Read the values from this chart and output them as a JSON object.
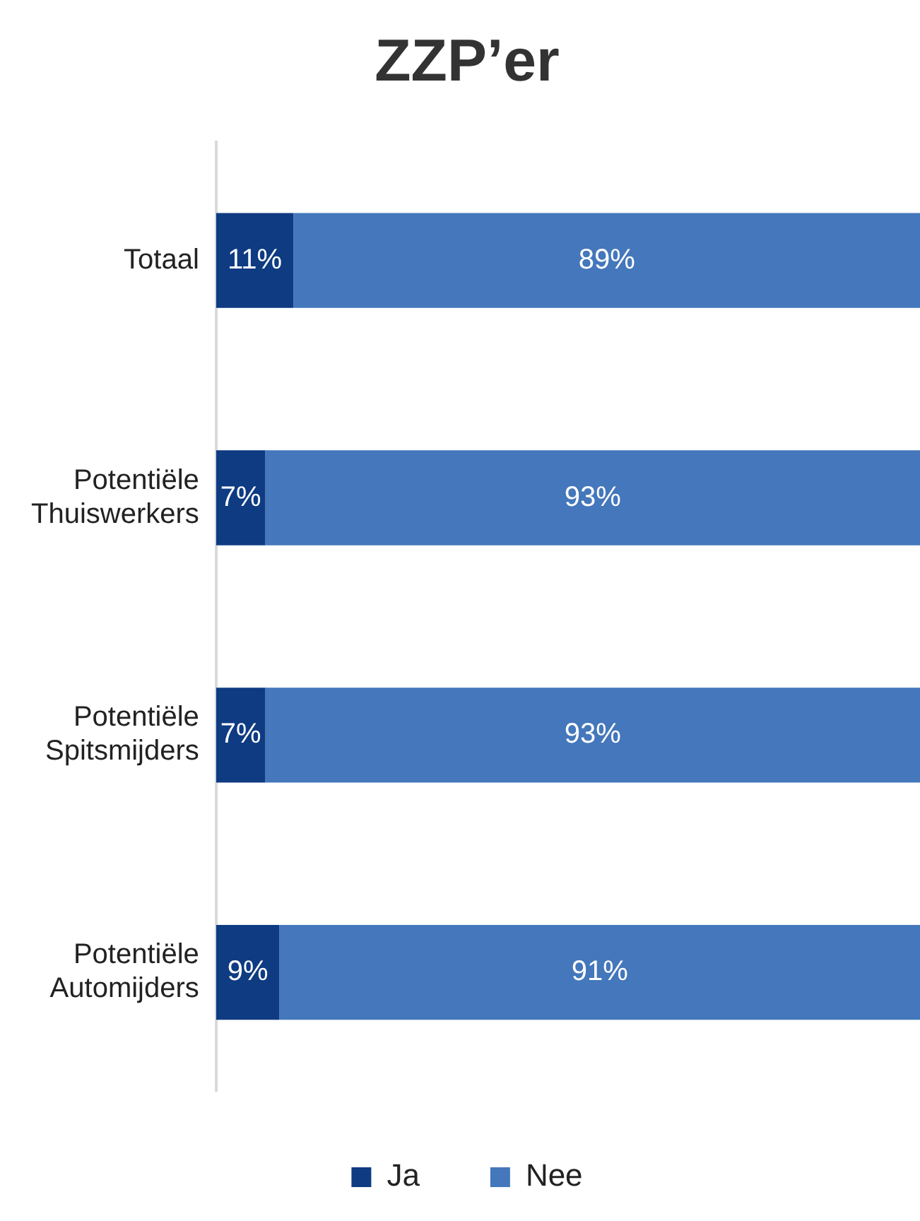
{
  "chart_data": {
    "type": "bar",
    "title": "ZZP’er",
    "orientation": "horizontal",
    "stacked": true,
    "legend": "bottom",
    "grid": false,
    "categories": [
      "Totaal",
      "Potentiële Thuiswerkers",
      "Potentiële Spitsmijders",
      "Potentiële Automijders"
    ],
    "series": [
      {
        "name": "Ja",
        "color": "#0e3b82",
        "values": [
          11,
          7,
          7,
          9
        ],
        "value_labels": [
          "11%",
          "7%",
          "7%",
          "9%"
        ]
      },
      {
        "name": "Nee",
        "color": "#4477bb",
        "values": [
          89,
          93,
          93,
          91
        ],
        "value_labels": [
          "89%",
          "93%",
          "93%",
          "91%"
        ]
      }
    ]
  }
}
